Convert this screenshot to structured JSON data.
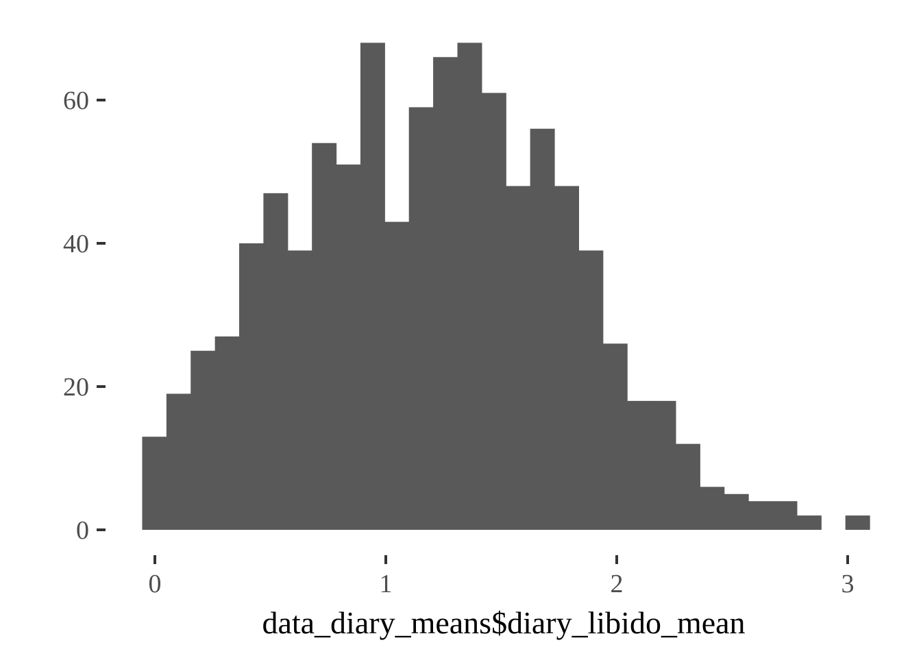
{
  "chart_data": {
    "type": "bar",
    "subtype": "histogram",
    "title": "",
    "xlabel": "data_diary_means$diary_libido_mean",
    "ylabel": "",
    "xlim": [
      -0.08,
      3.08
    ],
    "ylim": [
      0,
      68
    ],
    "x_ticks": [
      "0",
      "1",
      "2",
      "3"
    ],
    "y_ticks": [
      "0",
      "20",
      "40",
      "60"
    ],
    "grid": false,
    "bin_width": 0.105,
    "bin_start": -0.055,
    "bin_counts": [
      13,
      19,
      25,
      27,
      40,
      47,
      39,
      54,
      51,
      68,
      43,
      59,
      66,
      68,
      61,
      48,
      56,
      48,
      39,
      26,
      18,
      18,
      12,
      6,
      5,
      4,
      4,
      2,
      0,
      2
    ],
    "bar_color": "#595959"
  }
}
